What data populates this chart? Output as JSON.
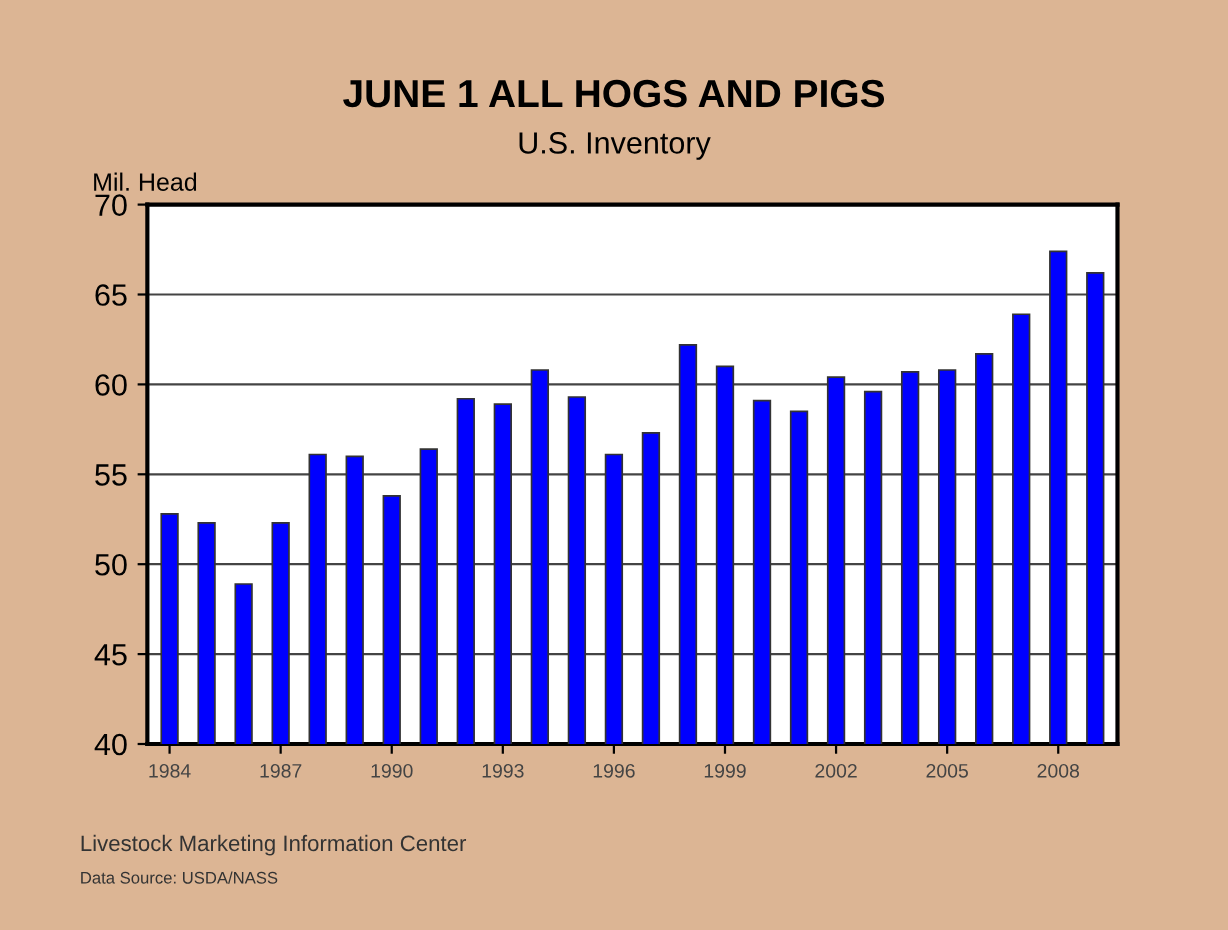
{
  "chart_data": {
    "type": "bar",
    "title": "JUNE 1 ALL HOGS AND PIGS",
    "subtitle": "U.S. Inventory",
    "ylabel": "Mil. Head",
    "categories": [
      "1984",
      null,
      null,
      "1987",
      null,
      null,
      "1990",
      null,
      null,
      "1993",
      null,
      null,
      "1996",
      null,
      null,
      "1999",
      null,
      null,
      "2002",
      null,
      null,
      "2005",
      null,
      null,
      "2008",
      null
    ],
    "values": [
      52.8,
      52.3,
      48.9,
      52.3,
      56.1,
      56.0,
      53.8,
      56.4,
      59.2,
      58.9,
      60.8,
      59.3,
      56.1,
      57.3,
      62.2,
      61.0,
      59.1,
      58.5,
      60.4,
      59.6,
      60.7,
      60.8,
      61.7,
      63.9,
      67.4,
      66.2
    ],
    "color": "#0000ff",
    "ylim": [
      40,
      70
    ],
    "yticks": [
      40,
      45,
      50,
      55,
      60,
      65,
      70
    ],
    "grid": "y",
    "annotations": [
      "Livestock Marketing Information Center",
      "Data Source: USDA/NASS"
    ]
  }
}
